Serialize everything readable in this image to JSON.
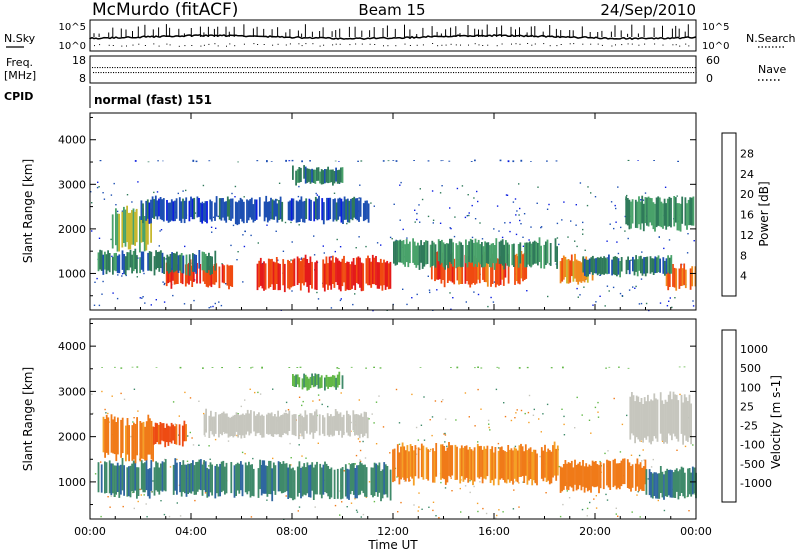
{
  "header": {
    "station": "McMurdo (fitACF)",
    "beam": "Beam 15",
    "date": "24/Sep/2010"
  },
  "noise_panel": {
    "left_label": "N.Sky",
    "right_label": "N.Search",
    "ticks_left": [
      "10^5",
      "10^0"
    ],
    "ticks_right": [
      "10^5",
      "10^0"
    ]
  },
  "freq_panel": {
    "left_label_1": "Freq.",
    "left_label_2": "[MHz]",
    "right_label": "Nave",
    "ticks_left": [
      "18",
      "8"
    ],
    "ticks_right": [
      "60",
      "0"
    ]
  },
  "cpid": {
    "label": "CPID",
    "value": "normal (fast) 151"
  },
  "x_axis": {
    "title": "Time UT",
    "ticks": [
      "00:00",
      "04:00",
      "08:00",
      "12:00",
      "16:00",
      "20:00",
      "00:00"
    ]
  },
  "power_colorbar": {
    "title": "Power [dB]",
    "ticks": [
      "4",
      "8",
      "12",
      "16",
      "20",
      "24",
      "28"
    ],
    "colors": [
      "#0a1de0",
      "#1d4fb2",
      "#2f7a5a",
      "#49a26a",
      "#c7b82f",
      "#f08a1e",
      "#f04a10",
      "#e41a1a"
    ]
  },
  "velocity_colorbar": {
    "title": "Velocity [m s-1]",
    "ticks": [
      "1000",
      "500",
      "100",
      "25",
      "-25",
      "-100",
      "-500",
      "-1000"
    ],
    "colors": [
      "#1d33bb",
      "#2f66a0",
      "#3f8a6a",
      "#62b847",
      "#c6c6be",
      "#f5a027",
      "#f07a18",
      "#ee4b13",
      "#e21818"
    ]
  },
  "chart_data": [
    {
      "type": "heatmap",
      "name": "power",
      "xlabel": "Time UT",
      "ylabel": "Slant Range [km]",
      "xlim": [
        0,
        24
      ],
      "ylim": [
        180,
        4600
      ],
      "yticks": [
        "1000",
        "2000",
        "3000",
        "4000"
      ],
      "bands": [
        {
          "t": [
            6.6,
            11.9
          ],
          "r": [
            650,
            1350
          ],
          "v": 28
        },
        {
          "t": [
            3.0,
            5.6
          ],
          "r": [
            700,
            1250
          ],
          "v": 27
        },
        {
          "t": [
            13.5,
            17.3
          ],
          "r": [
            750,
            1450
          ],
          "v": 26
        },
        {
          "t": [
            18.6,
            19.9
          ],
          "r": [
            800,
            1400
          ],
          "v": 22
        },
        {
          "t": [
            22.8,
            24.0
          ],
          "r": [
            650,
            1200
          ],
          "v": 24
        },
        {
          "t": [
            0.8,
            2.4
          ],
          "r": [
            1550,
            2450
          ],
          "v": 16
        },
        {
          "t": [
            12.0,
            18.5
          ],
          "r": [
            1150,
            1750
          ],
          "v": 12
        },
        {
          "t": [
            0.3,
            5.0
          ],
          "r": [
            1000,
            1500
          ],
          "v": 10
        },
        {
          "t": [
            19.5,
            23.0
          ],
          "r": [
            950,
            1400
          ],
          "v": 10
        },
        {
          "t": [
            21.2,
            23.9
          ],
          "r": [
            2000,
            2700
          ],
          "v": 12
        },
        {
          "t": [
            2.0,
            11.0
          ],
          "r": [
            2150,
            2700
          ],
          "v": 6
        },
        {
          "t": [
            8.0,
            10.0
          ],
          "r": [
            3000,
            3400
          ],
          "v": 10
        },
        {
          "t": [
            0.0,
            24.0
          ],
          "r": [
            3500,
            3550
          ],
          "v": 6
        }
      ]
    },
    {
      "type": "heatmap",
      "name": "velocity",
      "xlabel": "Time UT",
      "ylabel": "Slant Range [km]",
      "xlim": [
        0,
        24
      ],
      "ylim": [
        180,
        4600
      ],
      "yticks": [
        "1000",
        "2000",
        "3000",
        "4000"
      ],
      "bands": [
        {
          "t": [
            0.3,
            6.8
          ],
          "r": [
            700,
            1450
          ],
          "v": 450
        },
        {
          "t": [
            6.8,
            11.9
          ],
          "r": [
            650,
            1400
          ],
          "v": 450
        },
        {
          "t": [
            11.9,
            18.5
          ],
          "r": [
            1000,
            1800
          ],
          "v": -120
        },
        {
          "t": [
            18.6,
            22.0
          ],
          "r": [
            800,
            1450
          ],
          "v": -200
        },
        {
          "t": [
            22.0,
            24.0
          ],
          "r": [
            650,
            1300
          ],
          "v": 450
        },
        {
          "t": [
            0.5,
            2.5
          ],
          "r": [
            1500,
            2400
          ],
          "v": -150
        },
        {
          "t": [
            2.5,
            3.8
          ],
          "r": [
            1800,
            2300
          ],
          "v": -600
        },
        {
          "t": [
            4.5,
            11.0
          ],
          "r": [
            2000,
            2550
          ],
          "v": 0
        },
        {
          "t": [
            21.3,
            23.8
          ],
          "r": [
            1900,
            2900
          ],
          "v": 0
        },
        {
          "t": [
            8.0,
            10.0
          ],
          "r": [
            3050,
            3400
          ],
          "v": 80
        },
        {
          "t": [
            0.0,
            24.0
          ],
          "r": [
            3500,
            3550
          ],
          "v": 60
        }
      ]
    }
  ]
}
